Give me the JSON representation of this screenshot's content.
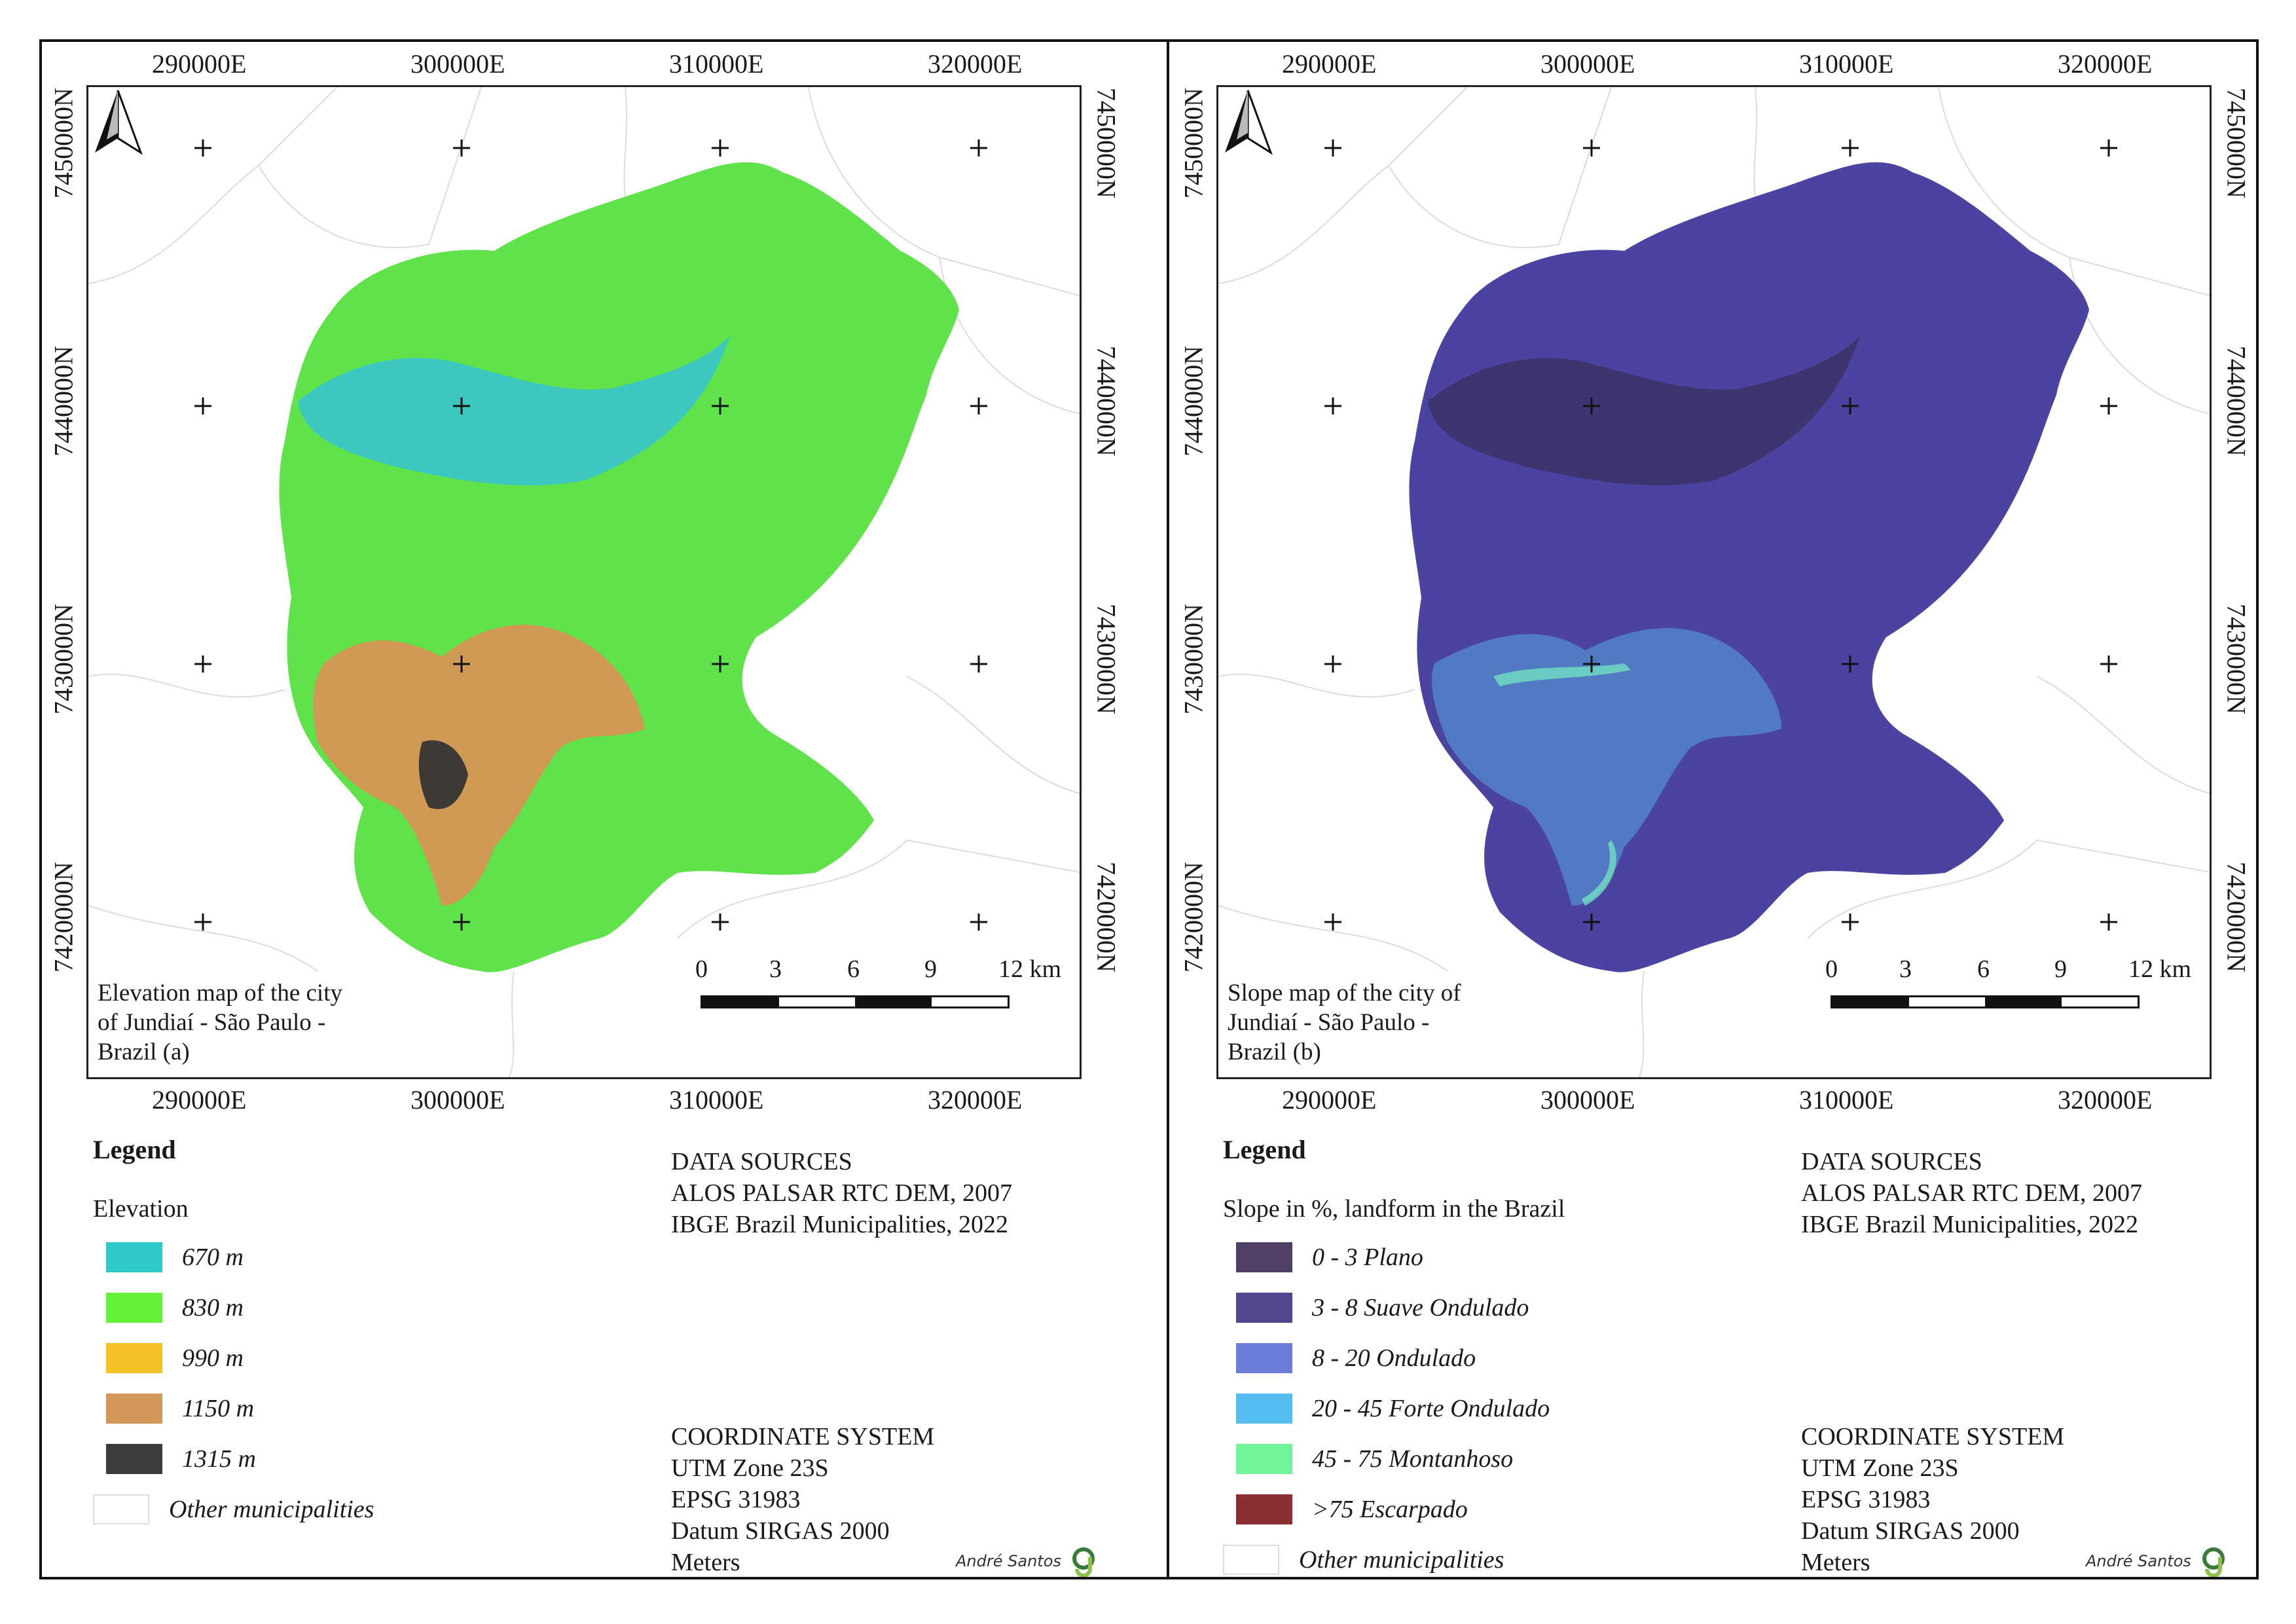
{
  "panels": [
    {
      "title": "Elevation map of the city of Jundiaí - São Paulo - Brazil (a)",
      "easting_labels": [
        "290000E",
        "300000E",
        "310000E",
        "320000E"
      ],
      "northing_labels": [
        "7450000N",
        "7440000N",
        "7430000N",
        "7420000N"
      ],
      "scale": {
        "ticks": [
          "0",
          "3",
          "6",
          "9",
          "12 km"
        ]
      },
      "legend_title": "Legend",
      "legend_subtitle": "Elevation",
      "legend_items": [
        {
          "label": "670 m",
          "color": "#2fc9c9"
        },
        {
          "label": "830 m",
          "color": "#66f23a"
        },
        {
          "label": "990 m",
          "color": "#f7c12a"
        },
        {
          "label": "1150 m",
          "color": "#d4975a"
        },
        {
          "label": "1315 m",
          "color": "#3b3b3b"
        }
      ],
      "other_label": "Other municipalities",
      "sources_title": "DATA SOURCES",
      "sources": [
        "ALOS PALSAR RTC DEM, 2007",
        "IBGE Brazil Municipalities, 2022"
      ],
      "coord_title": "COORDINATE SYSTEM",
      "coord_lines": [
        "UTM Zone 23S",
        "EPSG 31983",
        "Datum SIRGAS 2000",
        "Meters"
      ],
      "author": "André Santos",
      "fill_main": "#5fe24a",
      "fill_low": "#3cc8c0",
      "fill_high": "#d09a55",
      "fill_peak": "#3d3a36"
    },
    {
      "title": "Slope map of the city of Jundiaí - São Paulo - Brazil (b)",
      "easting_labels": [
        "290000E",
        "300000E",
        "310000E",
        "320000E"
      ],
      "northing_labels": [
        "7450000N",
        "7440000N",
        "7430000N",
        "7420000N"
      ],
      "scale": {
        "ticks": [
          "0",
          "3",
          "6",
          "9",
          "12 km"
        ]
      },
      "legend_title": "Legend",
      "legend_subtitle": "Slope in %, landform in the Brazil",
      "legend_items": [
        {
          "label": "0 - 3 Plano",
          "color": "#4f3f63"
        },
        {
          "label": "3 - 8 Suave Ondulado",
          "color": "#52468f"
        },
        {
          "label": "8 - 20 Ondulado",
          "color": "#6b7bd8"
        },
        {
          "label": "20 - 45 Forte Ondulado",
          "color": "#55bdf0"
        },
        {
          "label": "45 - 75 Montanhoso",
          "color": "#72f29a"
        },
        {
          "label": ">75 Escarpado",
          "color": "#8c2f32"
        }
      ],
      "other_label": "Other municipalities",
      "sources_title": "DATA SOURCES",
      "sources": [
        "ALOS PALSAR RTC DEM, 2007",
        "IBGE Brazil Municipalities, 2022"
      ],
      "coord_title": "COORDINATE SYSTEM",
      "coord_lines": [
        "UTM Zone 23S",
        "EPSG 31983",
        "Datum SIRGAS 2000",
        "Meters"
      ],
      "author": "André Santos",
      "fill_main": "#4a44a0",
      "fill_low": "#3d3470",
      "fill_high": "#5aa8e0",
      "fill_peak": "#6fe0c0"
    }
  ]
}
